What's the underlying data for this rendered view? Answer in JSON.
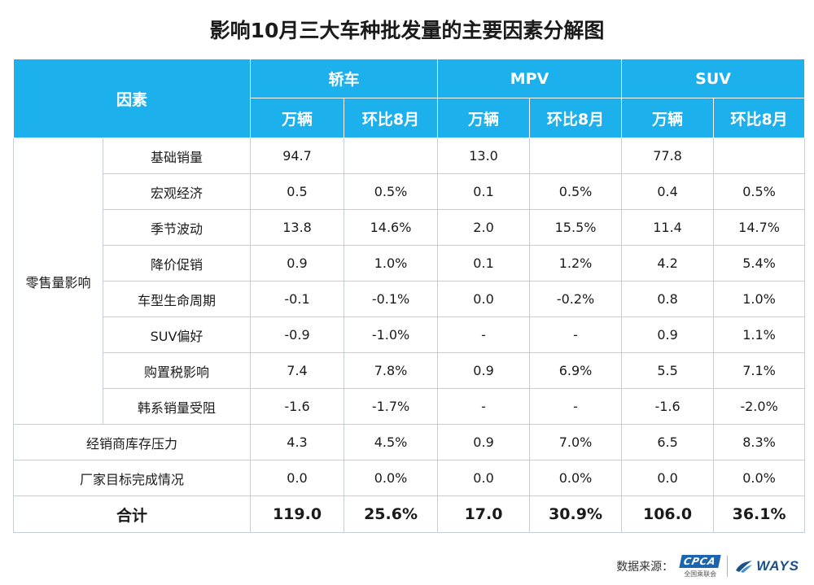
{
  "title": "影响10月三大车种批发量的主要因素分解图",
  "header": {
    "factor_label": "因素",
    "groups": [
      "轿车",
      "MPV",
      "SUV"
    ],
    "sub": [
      "万辆",
      "环比8月",
      "万辆",
      "环比8月",
      "万辆",
      "环比8月"
    ]
  },
  "retail_group_label": "零售量影响",
  "retail_rows": [
    {
      "label": "基础销量",
      "v": [
        "94.7",
        "",
        "13.0",
        "",
        "77.8",
        ""
      ]
    },
    {
      "label": "宏观经济",
      "v": [
        "0.5",
        "0.5%",
        "0.1",
        "0.5%",
        "0.4",
        "0.5%"
      ]
    },
    {
      "label": "季节波动",
      "v": [
        "13.8",
        "14.6%",
        "2.0",
        "15.5%",
        "11.4",
        "14.7%"
      ]
    },
    {
      "label": "降价促销",
      "v": [
        "0.9",
        "1.0%",
        "0.1",
        "1.2%",
        "4.2",
        "5.4%"
      ]
    },
    {
      "label": "车型生命周期",
      "v": [
        "-0.1",
        "-0.1%",
        "0.0",
        "-0.2%",
        "0.8",
        "1.0%"
      ]
    },
    {
      "label": "SUV偏好",
      "v": [
        "-0.9",
        "-1.0%",
        "-",
        "-",
        "0.9",
        "1.1%"
      ]
    },
    {
      "label": "购置税影响",
      "v": [
        "7.4",
        "7.8%",
        "0.9",
        "6.9%",
        "5.5",
        "7.1%"
      ]
    },
    {
      "label": "韩系销量受阻",
      "v": [
        "-1.6",
        "-1.7%",
        "-",
        "-",
        "-1.6",
        "-2.0%"
      ]
    }
  ],
  "other_rows": [
    {
      "label": "经销商库存压力",
      "v": [
        "4.3",
        "4.5%",
        "0.9",
        "7.0%",
        "6.5",
        "8.3%"
      ]
    },
    {
      "label": "厂家目标完成情况",
      "v": [
        "0.0",
        "0.0%",
        "0.0",
        "0.0%",
        "0.0",
        "0.0%"
      ]
    }
  ],
  "total_row": {
    "label": "合计",
    "v": [
      "119.0",
      "25.6%",
      "17.0",
      "30.9%",
      "106.0",
      "36.1%"
    ]
  },
  "footer": {
    "source_label": "数据来源：",
    "cpca_mark": "CPCA",
    "cpca_sub": "全国乘联会",
    "ways_text": "WAYS"
  }
}
